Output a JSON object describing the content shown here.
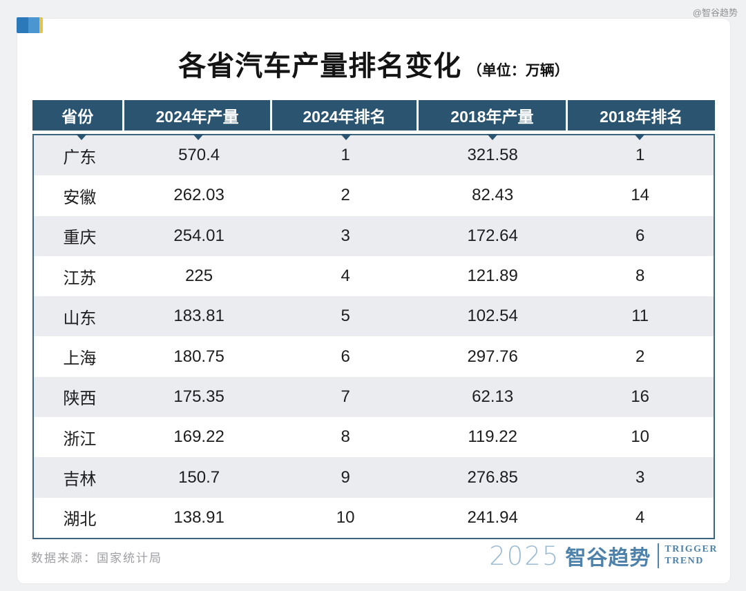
{
  "watermark": "@智谷趋势",
  "chart_data": {
    "type": "table",
    "title": "各省汽车产量排名变化",
    "unit_label": "（单位：万辆）",
    "columns": [
      "省份",
      "2024年产量",
      "2024年排名",
      "2018年产量",
      "2018年排名"
    ],
    "rows": [
      [
        "广东",
        570.4,
        1,
        321.58,
        1
      ],
      [
        "安徽",
        262.03,
        2,
        82.43,
        14
      ],
      [
        "重庆",
        254.01,
        3,
        172.64,
        6
      ],
      [
        "江苏",
        225,
        4,
        121.89,
        8
      ],
      [
        "山东",
        183.81,
        5,
        102.54,
        11
      ],
      [
        "上海",
        180.75,
        6,
        297.76,
        2
      ],
      [
        "陕西",
        175.35,
        7,
        62.13,
        16
      ],
      [
        "浙江",
        169.22,
        8,
        119.22,
        10
      ],
      [
        "吉林",
        150.7,
        9,
        276.85,
        3
      ],
      [
        "湖北",
        138.91,
        10,
        241.94,
        4
      ]
    ],
    "layout": {
      "header_bg": "#2a5470",
      "header_text": "#ffffff",
      "row_alt_bg": "#eaecef",
      "body_border": "#3a6480",
      "grid": "off",
      "alternating_rows": true
    }
  },
  "icons": {
    "logo_mark": "three-color-squares",
    "column_pointer": "triangle-down"
  },
  "footer": {
    "source": "数据来源：国家统计局",
    "brand": {
      "year": "2025",
      "name": "智谷趋势",
      "en_line1": "TRIGGER",
      "en_line2": "TREND",
      "accent_color": "#4e82ab",
      "year_color": "#9cbcd3"
    }
  },
  "logo_colors": [
    "#2c79ba",
    "#4b95d1",
    "#e5c34d"
  ]
}
